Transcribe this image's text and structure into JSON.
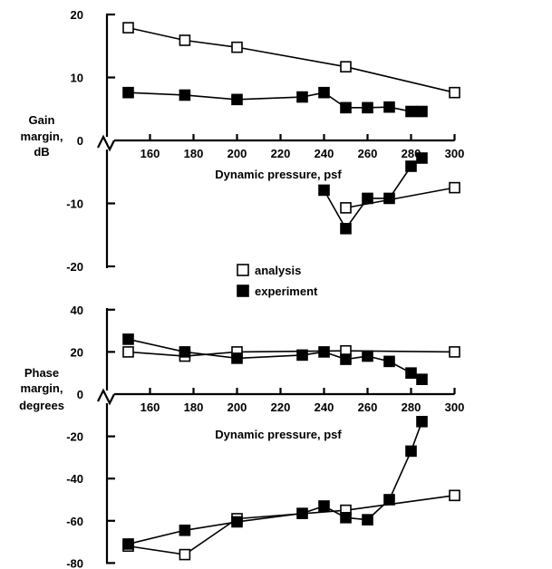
{
  "chart_data": [
    {
      "type": "line",
      "ylabel_lines": [
        "Gain",
        "margin,",
        "dB"
      ],
      "xlabel": "Dynamic pressure, psf",
      "x_ticks": [
        160,
        180,
        200,
        220,
        240,
        260,
        280,
        300
      ],
      "y_ticks": [
        20,
        10,
        0,
        -10,
        -20
      ],
      "xlim": [
        150,
        300
      ],
      "ylim": [
        -20,
        20
      ],
      "series": [
        {
          "name": "analysis",
          "marker": "open-square",
          "segments": [
            [
              [
                150,
                17.9
              ],
              [
                176,
                15.9
              ],
              [
                200,
                14.8
              ],
              [
                250,
                11.7
              ],
              [
                300,
                7.6
              ]
            ],
            [
              [
                250,
                -10.7
              ],
              [
                300,
                -7.5
              ]
            ]
          ]
        },
        {
          "name": "experiment",
          "marker": "filled-square",
          "segments": [
            [
              [
                150,
                7.6
              ],
              [
                176,
                7.2
              ],
              [
                200,
                6.5
              ],
              [
                230,
                6.9
              ],
              [
                240,
                7.6
              ],
              [
                250,
                5.2
              ],
              [
                260,
                5.2
              ],
              [
                270,
                5.3
              ],
              [
                280,
                4.6
              ],
              [
                285,
                4.6
              ]
            ],
            [
              [
                240,
                -7.9
              ],
              [
                250,
                -14.0
              ],
              [
                260,
                -9.2
              ],
              [
                270,
                -9.2
              ],
              [
                280,
                -4.1
              ],
              [
                285,
                -2.8
              ]
            ]
          ]
        }
      ]
    },
    {
      "type": "line",
      "ylabel_lines": [
        "Phase",
        "margin,",
        "degrees"
      ],
      "xlabel": "Dynamic pressure, psf",
      "x_ticks": [
        160,
        180,
        200,
        220,
        240,
        260,
        280,
        300
      ],
      "y_ticks": [
        40,
        20,
        0,
        -20,
        -40,
        -60,
        -80
      ],
      "xlim": [
        150,
        300
      ],
      "ylim": [
        -80,
        40
      ],
      "series": [
        {
          "name": "analysis",
          "marker": "open-square",
          "segments": [
            [
              [
                150,
                20
              ],
              [
                176,
                18
              ],
              [
                200,
                20
              ],
              [
                250,
                20.5
              ],
              [
                300,
                20
              ]
            ],
            [
              [
                150,
                -72
              ],
              [
                176,
                -76
              ],
              [
                200,
                -59
              ],
              [
                250,
                -55
              ],
              [
                300,
                -48
              ]
            ]
          ]
        },
        {
          "name": "experiment",
          "marker": "filled-square",
          "segments": [
            [
              [
                150,
                26
              ],
              [
                176,
                20
              ],
              [
                200,
                17
              ],
              [
                230,
                18.5
              ],
              [
                240,
                20
              ],
              [
                250,
                16.5
              ],
              [
                260,
                18
              ],
              [
                270,
                15.5
              ],
              [
                280,
                10
              ],
              [
                285,
                7
              ]
            ],
            [
              [
                150,
                -71
              ],
              [
                176,
                -64.5
              ],
              [
                200,
                -60.5
              ],
              [
                230,
                -56.5
              ],
              [
                240,
                -53
              ],
              [
                250,
                -58.5
              ],
              [
                260,
                -59.5
              ],
              [
                270,
                -50
              ],
              [
                280,
                -27
              ],
              [
                285,
                -13
              ]
            ]
          ]
        }
      ]
    }
  ],
  "legend": {
    "placement": "between-panels",
    "entries": [
      {
        "label": "analysis",
        "marker": "open-square"
      },
      {
        "label": "experiment",
        "marker": "filled-square"
      }
    ]
  }
}
